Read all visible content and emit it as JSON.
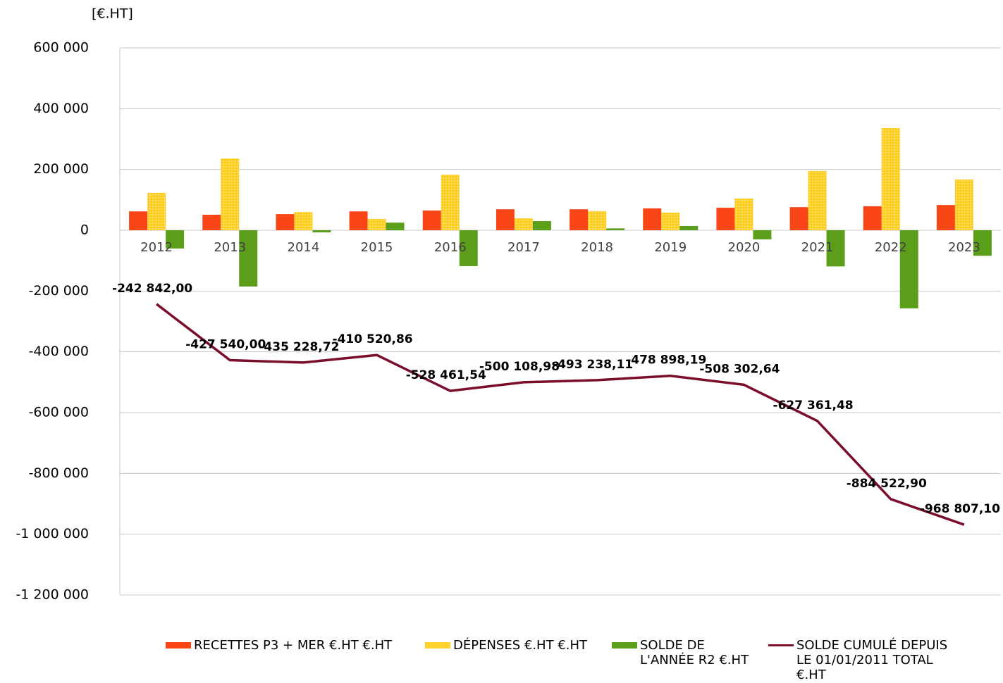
{
  "chart_data": {
    "type": "bar_line",
    "unit_label": "[€.HT]",
    "categories": [
      "2012",
      "2013",
      "2014",
      "2015",
      "2016",
      "2017",
      "2018",
      "2019",
      "2020",
      "2021",
      "2022",
      "2023"
    ],
    "series": [
      {
        "name": "RECETTES P3 + MER €.HT €.HT",
        "type": "bar",
        "color": "#fa4616",
        "values": [
          62000,
          51000,
          53000,
          62000,
          65000,
          69000,
          69000,
          72000,
          74000,
          76000,
          79000,
          83000
        ]
      },
      {
        "name": "DÉPENSES €.HT €.HT",
        "type": "bar",
        "color": "#ffd22e",
        "values": [
          123000,
          236000,
          60000,
          37000,
          183000,
          39000,
          63000,
          58000,
          104000,
          195000,
          336000,
          167000
        ]
      },
      {
        "name": "SOLDE DE L'ANNÉE R2 €.HT",
        "type": "bar",
        "color": "#5a9e1a",
        "values": [
          -60000,
          -185000,
          -7000,
          25000,
          -118000,
          30000,
          6000,
          14000,
          -30000,
          -119000,
          -257000,
          -84000
        ]
      },
      {
        "name": "SOLDE CUMULÉ DEPUIS LE 01/01/2011 TOTAL €.HT",
        "type": "line",
        "color": "#7b0e2a",
        "values": [
          -242842.0,
          -427540.0,
          -435228.72,
          -410520.86,
          -528461.54,
          -500108.98,
          -493238.11,
          -478898.19,
          -508302.64,
          -627361.48,
          -884522.9,
          -968807.1
        ],
        "value_labels": [
          "-242 842,00",
          "-427 540,00",
          "-435 228,72",
          "-410 520,86",
          "-528 461,54",
          "-500 108,98",
          "-493 238,11",
          "-478 898,19",
          "-508 302,64",
          "-627 361,48",
          "-884 522,90",
          "-968 807,10"
        ]
      }
    ],
    "ylim": [
      -1200000,
      600000
    ],
    "yticks": [
      {
        "value": -1200000,
        "label": "-1 200 000"
      },
      {
        "value": -1000000,
        "label": "-1 000 000"
      },
      {
        "value": -800000,
        "label": "-800 000"
      },
      {
        "value": -600000,
        "label": "-600 000"
      },
      {
        "value": -400000,
        "label": "-400 000"
      },
      {
        "value": -200000,
        "label": "-200 000"
      },
      0,
      {
        "value": 200000,
        "label": "200 000"
      },
      {
        "value": 400000,
        "label": "400 000"
      },
      {
        "value": 600000,
        "label": "600 000"
      }
    ],
    "grid": true,
    "legend": "bottom"
  }
}
